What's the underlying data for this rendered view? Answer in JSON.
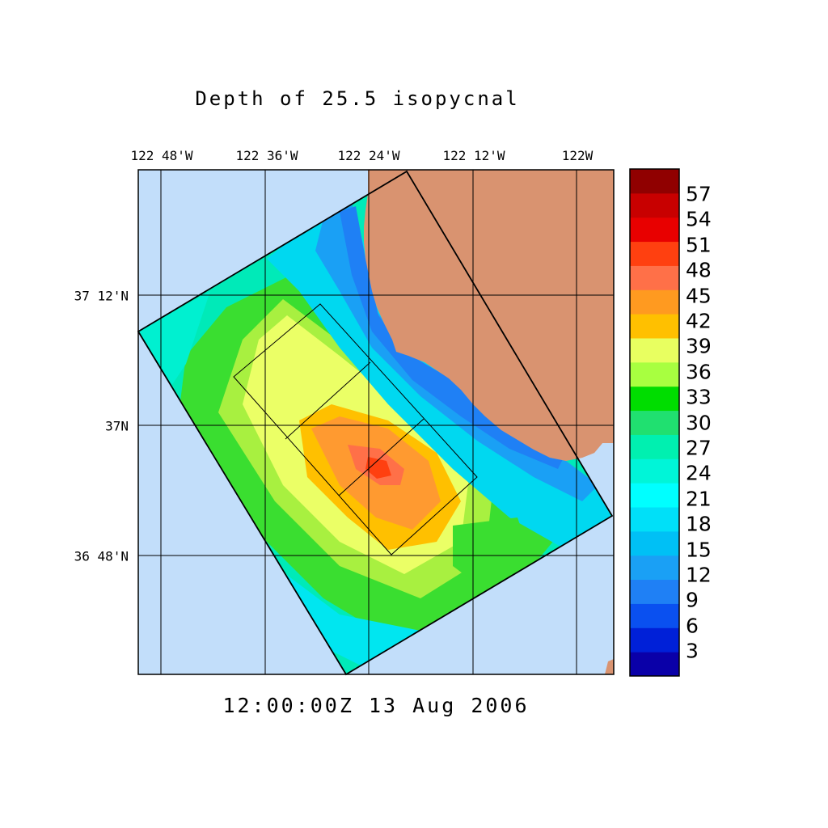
{
  "title": "Depth of 25.5 isopycnal",
  "timestamp": "12:00:00Z  13 Aug 2006",
  "lon_labels": [
    "122 48'W",
    "122 36'W",
    "122 24'W",
    "122 12'W",
    "122W"
  ],
  "lat_labels": [
    "37 12'N",
    "37N",
    "36 48'N"
  ],
  "colorbar": {
    "labels": [
      "57",
      "54",
      "51",
      "48",
      "45",
      "42",
      "39",
      "36",
      "33",
      "30",
      "27",
      "24",
      "21",
      "18",
      "15",
      "12",
      "9",
      "6",
      "3"
    ],
    "colors": [
      "#0a00a8",
      "#0020d8",
      "#0a50f0",
      "#1f80f5",
      "#1aa0f5",
      "#00c0f5",
      "#00e0f8",
      "#00ffff",
      "#00f5d8",
      "#00f0b0",
      "#20e070",
      "#00dd00",
      "#a8ff40",
      "#e8ff60",
      "#ffc000",
      "#ff9a20",
      "#ff7048",
      "#ff4010",
      "#e80000",
      "#c80000",
      "#900000"
    ]
  },
  "map": {
    "ocean_color": "#c2defa",
    "land_color": "#d99370"
  }
}
